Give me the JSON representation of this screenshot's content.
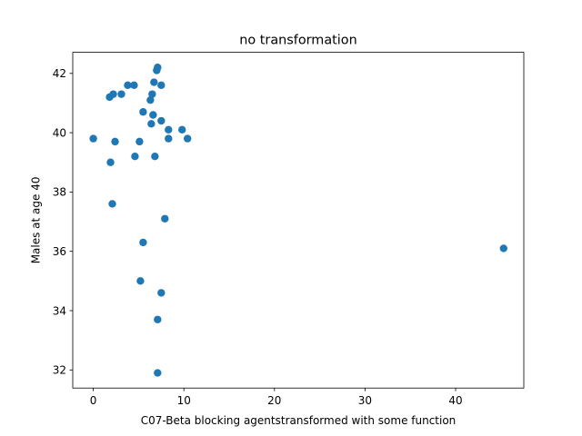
{
  "chart_data": {
    "type": "scatter",
    "title": "no transformation",
    "xlabel": "C07-Beta blocking agentstransformed with some function",
    "ylabel": "Males at age 40",
    "xlim": [
      -2.27,
      47.53
    ],
    "ylim": [
      31.39,
      42.71
    ],
    "xticks": [
      0,
      10,
      20,
      30,
      40
    ],
    "yticks": [
      32,
      34,
      36,
      38,
      40,
      42
    ],
    "grid": false,
    "color": "#1f77b4",
    "points": [
      {
        "x": 0.0,
        "y": 39.8
      },
      {
        "x": 1.8,
        "y": 41.2
      },
      {
        "x": 2.2,
        "y": 41.3
      },
      {
        "x": 3.1,
        "y": 41.3
      },
      {
        "x": 3.8,
        "y": 41.6
      },
      {
        "x": 4.5,
        "y": 41.6
      },
      {
        "x": 1.9,
        "y": 39.0
      },
      {
        "x": 2.4,
        "y": 39.7
      },
      {
        "x": 2.1,
        "y": 37.6
      },
      {
        "x": 4.6,
        "y": 39.2
      },
      {
        "x": 5.1,
        "y": 39.7
      },
      {
        "x": 5.5,
        "y": 40.7
      },
      {
        "x": 5.5,
        "y": 36.3
      },
      {
        "x": 5.2,
        "y": 35.0
      },
      {
        "x": 6.3,
        "y": 41.1
      },
      {
        "x": 6.5,
        "y": 41.3
      },
      {
        "x": 6.7,
        "y": 41.7
      },
      {
        "x": 7.0,
        "y": 42.1
      },
      {
        "x": 7.1,
        "y": 42.2
      },
      {
        "x": 7.5,
        "y": 41.6
      },
      {
        "x": 6.6,
        "y": 40.6
      },
      {
        "x": 6.4,
        "y": 40.3
      },
      {
        "x": 7.5,
        "y": 40.4
      },
      {
        "x": 6.8,
        "y": 39.2
      },
      {
        "x": 8.3,
        "y": 40.1
      },
      {
        "x": 8.3,
        "y": 39.8
      },
      {
        "x": 9.8,
        "y": 40.1
      },
      {
        "x": 10.4,
        "y": 39.8
      },
      {
        "x": 7.9,
        "y": 37.1
      },
      {
        "x": 7.5,
        "y": 34.6
      },
      {
        "x": 7.1,
        "y": 33.7
      },
      {
        "x": 7.1,
        "y": 31.9
      },
      {
        "x": 45.3,
        "y": 36.1
      }
    ]
  }
}
